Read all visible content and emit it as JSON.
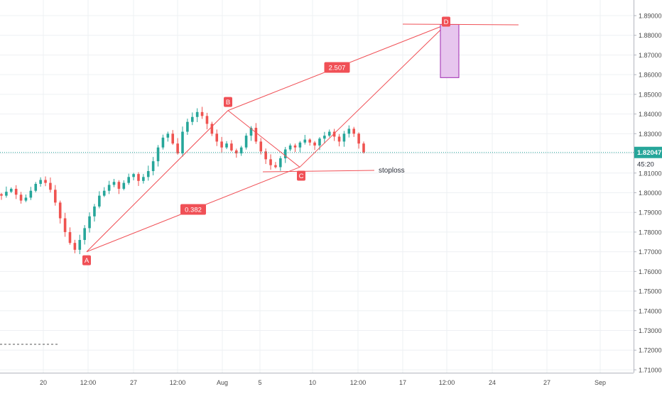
{
  "chart_data": {
    "type": "candlestick",
    "title": "",
    "xlabel": "",
    "ylabel": "",
    "ylim": [
      1.7085,
      1.8965
    ],
    "y_ticks": [
      "1.89000",
      "1.88000",
      "1.87000",
      "1.86000",
      "1.85000",
      "1.84000",
      "1.83000",
      "1.82000",
      "1.81000",
      "1.80000",
      "1.79000",
      "1.78000",
      "1.77000",
      "1.76000",
      "1.75000",
      "1.74000",
      "1.73000",
      "1.72000",
      "1.71000"
    ],
    "x_ticks": [
      "20",
      "12:00",
      "27",
      "12:00",
      "Aug",
      "5",
      "10",
      "12:00",
      "17",
      "12:00",
      "24",
      "27",
      "Sep"
    ],
    "last_price": "1.82047",
    "countdown": "45:20",
    "pattern_points": [
      {
        "label": "A",
        "price": 1.77
      },
      {
        "label": "B",
        "price": 1.8418
      },
      {
        "label": "C",
        "price": 1.813
      },
      {
        "label": "D",
        "price": 1.8855
      }
    ],
    "ratios": [
      {
        "label": "0.382",
        "connects": "A-C"
      },
      {
        "label": "2.507",
        "connects": "B-D"
      }
    ],
    "target_zone": {
      "top": 1.8855,
      "bottom": 1.8585
    },
    "stoploss": {
      "label": "stoploss",
      "price": 1.811
    },
    "closes": [
      1.7985,
      1.8005,
      1.802,
      1.799,
      1.796,
      1.7975,
      1.801,
      1.8045,
      1.8065,
      1.805,
      1.8015,
      1.795,
      1.787,
      1.78,
      1.7745,
      1.771,
      1.776,
      1.782,
      1.788,
      1.793,
      1.7985,
      1.801,
      1.804,
      1.8055,
      1.802,
      1.805,
      1.808,
      1.8095,
      1.806,
      1.808,
      1.811,
      1.816,
      1.823,
      1.828,
      1.83,
      1.825,
      1.82,
      1.831,
      1.836,
      1.8385,
      1.841,
      1.839,
      1.835,
      1.83,
      1.826,
      1.823,
      1.825,
      1.8215,
      1.82,
      1.823,
      1.829,
      1.833,
      1.826,
      1.821,
      1.817,
      1.814,
      1.813,
      1.8175,
      1.822,
      1.824,
      1.823,
      1.8255,
      1.827,
      1.8255,
      1.824,
      1.8275,
      1.829,
      1.831,
      1.8285,
      1.826,
      1.83,
      1.8325,
      1.83,
      1.825,
      1.8205
    ]
  },
  "colors": {
    "candle_up": "#26a69a",
    "candle_down": "#ef5350",
    "pattern": "#f05056",
    "zone_fill": "#e7c6ee",
    "zone_stroke": "#9c27b0",
    "price_line": "#26a69a",
    "axis_text": "#4a4a4a"
  }
}
